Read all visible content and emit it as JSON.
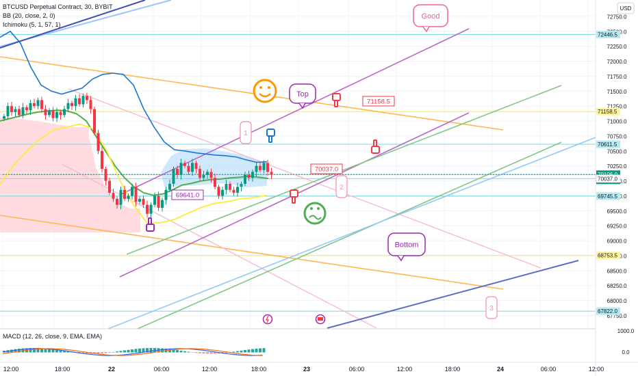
{
  "header": {
    "symbol_line": "BTCUSD Perpetual Contract, 30, BYBIT",
    "bb_line": "BB (20, close, 2, 0)",
    "ichimoku_line": "Ichimoku (5, 1, 57, 1)",
    "currency": "USD"
  },
  "chart_data": {
    "type": "line",
    "title": "BTCUSD Perpetual Contract, 30, BYBIT",
    "ylim": [
      67550,
      73000
    ],
    "y_ticks": [
      67750,
      68000,
      68250,
      68500,
      68750,
      69000,
      69250,
      69500,
      69750,
      70000,
      70250,
      70500,
      70750,
      71000,
      71250,
      71500,
      71750,
      72000,
      72250,
      72500,
      72750
    ],
    "x_ticks": [
      "12:00",
      "18:00",
      "22",
      "06:00",
      "12:00",
      "18:00",
      "23",
      "06:00",
      "12:00",
      "18:00",
      "24",
      "06:00",
      "12:00"
    ],
    "grid": true,
    "series": [
      {
        "close": [
          71080,
          71250,
          71150,
          71200,
          71100,
          71230,
          71180,
          71300,
          71250,
          71350,
          71200,
          71100,
          71180,
          71050,
          71150,
          71100,
          71200,
          71300,
          71250,
          71380,
          71280,
          71420,
          71350,
          71200,
          70800,
          70500,
          70200,
          70000,
          69800,
          69700,
          69600,
          69850,
          69700,
          69750,
          69900,
          69650,
          69700,
          69600,
          69450,
          69600,
          69750,
          69550,
          69680,
          69850,
          69950,
          70200,
          70100,
          70300,
          70250,
          70150,
          70300,
          70200,
          70050,
          70100,
          70150,
          70050,
          69900,
          69750,
          69850,
          69950,
          69850,
          69800,
          69900,
          69950,
          70100,
          70050,
          70150,
          70250,
          70180,
          70300,
          70150,
          70106
        ]
      },
      {
        "bb_mid": [
          71000,
          71040,
          71080,
          71120,
          71150,
          71170,
          71180,
          71170,
          71120,
          71000,
          70750,
          70500,
          70250,
          70050,
          69900,
          69800,
          69760,
          69780,
          69850,
          69930,
          69960,
          70000,
          70020,
          70030,
          70050,
          70060,
          70080,
          70060,
          70040
        ]
      },
      {
        "bb_upper": [
          72400,
          72500,
          72300,
          71900,
          71600,
          71500,
          71450,
          71500,
          71550,
          71700,
          71780,
          71800,
          71780,
          71600,
          71200,
          70900,
          70650,
          70520,
          70500,
          70470,
          70450,
          70430,
          70420,
          70400,
          70350,
          70310,
          70320
        ]
      },
      {
        "bb_lower": [
          69950,
          70250,
          70500,
          70700,
          70850,
          70900,
          70950,
          70870,
          70500,
          70000,
          69600,
          69300,
          69300,
          69350,
          69450,
          69550,
          69620,
          69650,
          69700,
          69720,
          69760
        ]
      }
    ],
    "horizontal_levels": [
      72446.5,
      71158.5,
      70611.5,
      70106.0,
      70037.0,
      69745.5,
      68753.5,
      67822.0
    ],
    "price_axis_labels": [
      {
        "value": "72446.5",
        "color": "#b2ebf2",
        "text_color": "#131722"
      },
      {
        "value": "71158.5",
        "color": "#fff59d",
        "text_color": "#131722"
      },
      {
        "value": "70611.5",
        "color": "#b2ebf2",
        "text_color": "#131722"
      },
      {
        "value": "70106.0",
        "sub": "25:54",
        "color": "#089981",
        "text_color": "#ffffff"
      },
      {
        "value": "70037.0",
        "color": "#ffffff",
        "text_color": "#131722"
      },
      {
        "value": "69745.5",
        "color": "#b2ebf2",
        "text_color": "#131722"
      },
      {
        "value": "68753.5",
        "color": "#fff59d",
        "text_color": "#131722"
      },
      {
        "value": "67822.0",
        "color": "#b2ebf2",
        "text_color": "#131722"
      }
    ],
    "annotations": [
      {
        "text": "Good",
        "kind": "callout",
        "color": "#f06292"
      },
      {
        "text": "Top",
        "kind": "callout",
        "color": "#9c27b0"
      },
      {
        "text": "Bottom",
        "kind": "callout",
        "color": "#9c27b0"
      },
      {
        "text": "71158.5",
        "kind": "price-label",
        "color": "#f23645"
      },
      {
        "text": "70037.0",
        "kind": "price-label",
        "color": "#f23645"
      },
      {
        "text": "69641.0",
        "kind": "price-label",
        "color": "#9c27b0"
      },
      {
        "text": "1",
        "kind": "wave",
        "color": "#f48fb1"
      },
      {
        "text": "2",
        "kind": "wave",
        "color": "#f48fb1"
      },
      {
        "text": "3",
        "kind": "wave",
        "color": "#f48fb1"
      }
    ],
    "macd": {
      "title": "MACD (12, 26, close, 9, EMA, EMA)",
      "y_ticks": [
        "1000.0",
        "0.0"
      ]
    }
  },
  "icons": [
    "smile-icon",
    "confused-face-icon",
    "thumbs-down-icon",
    "pointing-hand-icon",
    "lightning-icon",
    "flag-icon"
  ],
  "colors": {
    "up": "#089981",
    "down": "#f23645",
    "cloud": "#ffcdd2",
    "bb_band": "#bbdefb",
    "level_cyan": "#b2ebf2",
    "level_yellow": "#fff59d"
  }
}
